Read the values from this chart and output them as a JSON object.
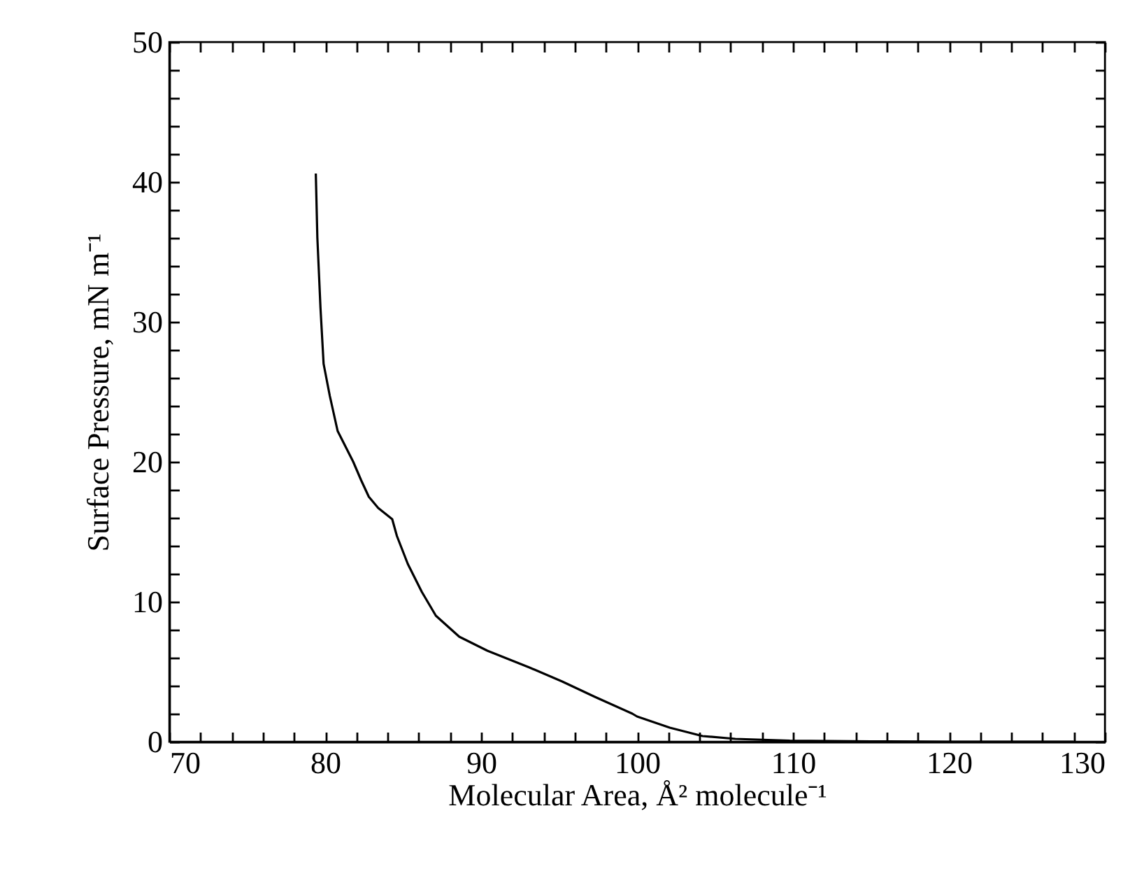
{
  "chart_data": {
    "type": "line",
    "xlabel": "Molecular Area, Å² molecule⁻¹",
    "ylabel": "Surface Pressure, mN m⁻¹",
    "x": [
      79.4,
      79.5,
      79.7,
      79.9,
      80.3,
      80.8,
      81.8,
      82.3,
      82.8,
      83.4,
      84.3,
      84.6,
      85.3,
      86.2,
      87.1,
      88.6,
      90.4,
      93.1,
      95.2,
      97.3,
      99.7,
      100.0,
      102.1,
      104.2,
      106.3,
      109.8,
      115,
      120,
      128
    ],
    "series": [
      {
        "color": "#000000",
        "values": [
          40.6,
          36,
          31,
          27,
          24.7,
          22.2,
          20,
          18.7,
          17.5,
          16.7,
          15.9,
          14.7,
          12.7,
          10.7,
          9,
          7.5,
          6.5,
          5.3,
          4.3,
          3.2,
          2,
          1.8,
          1.0,
          0.4,
          0.2,
          0.07,
          0.02,
          0,
          0
        ]
      }
    ],
    "xlim": [
      70,
      130
    ],
    "ylim": [
      0,
      50
    ],
    "xticks": [
      70,
      {
        "value": 72,
        "label": null
      },
      {
        "value": 74,
        "label": null
      },
      {
        "value": 76,
        "label": null
      },
      {
        "value": 78,
        "label": null
      },
      80,
      {
        "value": 82,
        "label": null
      },
      {
        "value": 84,
        "label": null
      },
      {
        "value": 86,
        "label": null
      },
      {
        "value": 88,
        "label": null
      },
      90,
      {
        "value": 92,
        "label": null
      },
      {
        "value": 94,
        "label": null
      },
      {
        "value": 96,
        "label": null
      },
      {
        "value": 98,
        "label": null
      },
      100,
      {
        "value": 102,
        "label": null
      },
      {
        "value": 104,
        "label": null
      },
      {
        "value": 106,
        "label": null
      },
      {
        "value": 108,
        "label": null
      },
      110,
      {
        "value": 112,
        "label": null
      },
      {
        "value": 114,
        "label": null
      },
      {
        "value": 116,
        "label": null
      },
      {
        "value": 118,
        "label": null
      },
      120,
      {
        "value": 122,
        "label": null
      },
      {
        "value": 124,
        "label": null
      },
      {
        "value": 126,
        "label": null
      },
      {
        "value": 128,
        "label": null
      },
      130
    ],
    "yticks": [
      0,
      {
        "value": 2,
        "label": null
      },
      {
        "value": 4,
        "label": null
      },
      {
        "value": 6,
        "label": null
      },
      {
        "value": 8,
        "label": null
      },
      10,
      {
        "value": 12,
        "label": null
      },
      {
        "value": 14,
        "label": null
      },
      {
        "value": 16,
        "label": null
      },
      {
        "value": 18,
        "label": null
      },
      20,
      {
        "value": 22,
        "label": null
      },
      {
        "value": 24,
        "label": null
      },
      {
        "value": 26,
        "label": null
      },
      {
        "value": 28,
        "label": null
      },
      30,
      {
        "value": 32,
        "label": null
      },
      {
        "value": 34,
        "label": null
      },
      {
        "value": 36,
        "label": null
      },
      {
        "value": 38,
        "label": null
      },
      40,
      {
        "value": 42,
        "label": null
      },
      {
        "value": 44,
        "label": null
      },
      {
        "value": 46,
        "label": null
      },
      {
        "value": 48,
        "label": null
      },
      50
    ],
    "grid": false
  }
}
